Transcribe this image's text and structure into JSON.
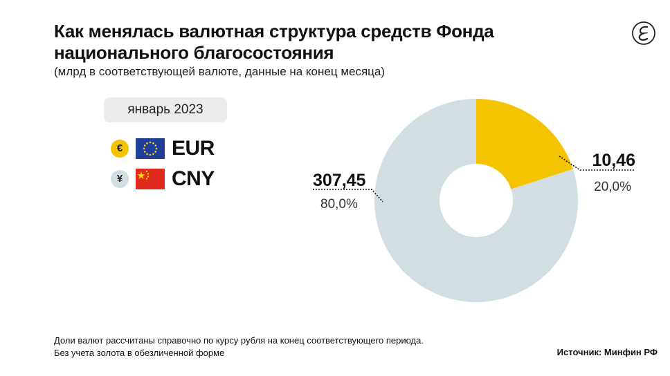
{
  "header": {
    "title": "Как менялась валютная структура средств Фонда национального благосостояния",
    "subtitle": "(млрд в соответствующей валюте, данные на конец месяца)",
    "logo_icon": "publisher-logo-icon"
  },
  "period": "январь 2023",
  "legend": [
    {
      "symbol": "€",
      "code": "EUR",
      "coin_color": "#F5C400",
      "flag_icon": "eu-flag-icon"
    },
    {
      "symbol": "¥",
      "code": "CNY",
      "coin_color": "#D3DEE3",
      "flag_icon": "china-flag-icon"
    }
  ],
  "chart_data": {
    "type": "pie",
    "style": "donut",
    "series": [
      {
        "name": "EUR",
        "value": 10.46,
        "value_label": "10,46",
        "percent": 20.0,
        "percent_label": "20,0%",
        "color": "#F5C400"
      },
      {
        "name": "CNY",
        "value": 307.45,
        "value_label": "307,45",
        "percent": 80.0,
        "percent_label": "80,0%",
        "color": "#D3DEE3"
      }
    ]
  },
  "footnote": {
    "line1": "Доли валют рассчитаны справочно по курсу рубля на конец соответствующего периода.",
    "line2": "Без учета золота в обезличенной форме"
  },
  "source": "Источник: Минфин РФ"
}
